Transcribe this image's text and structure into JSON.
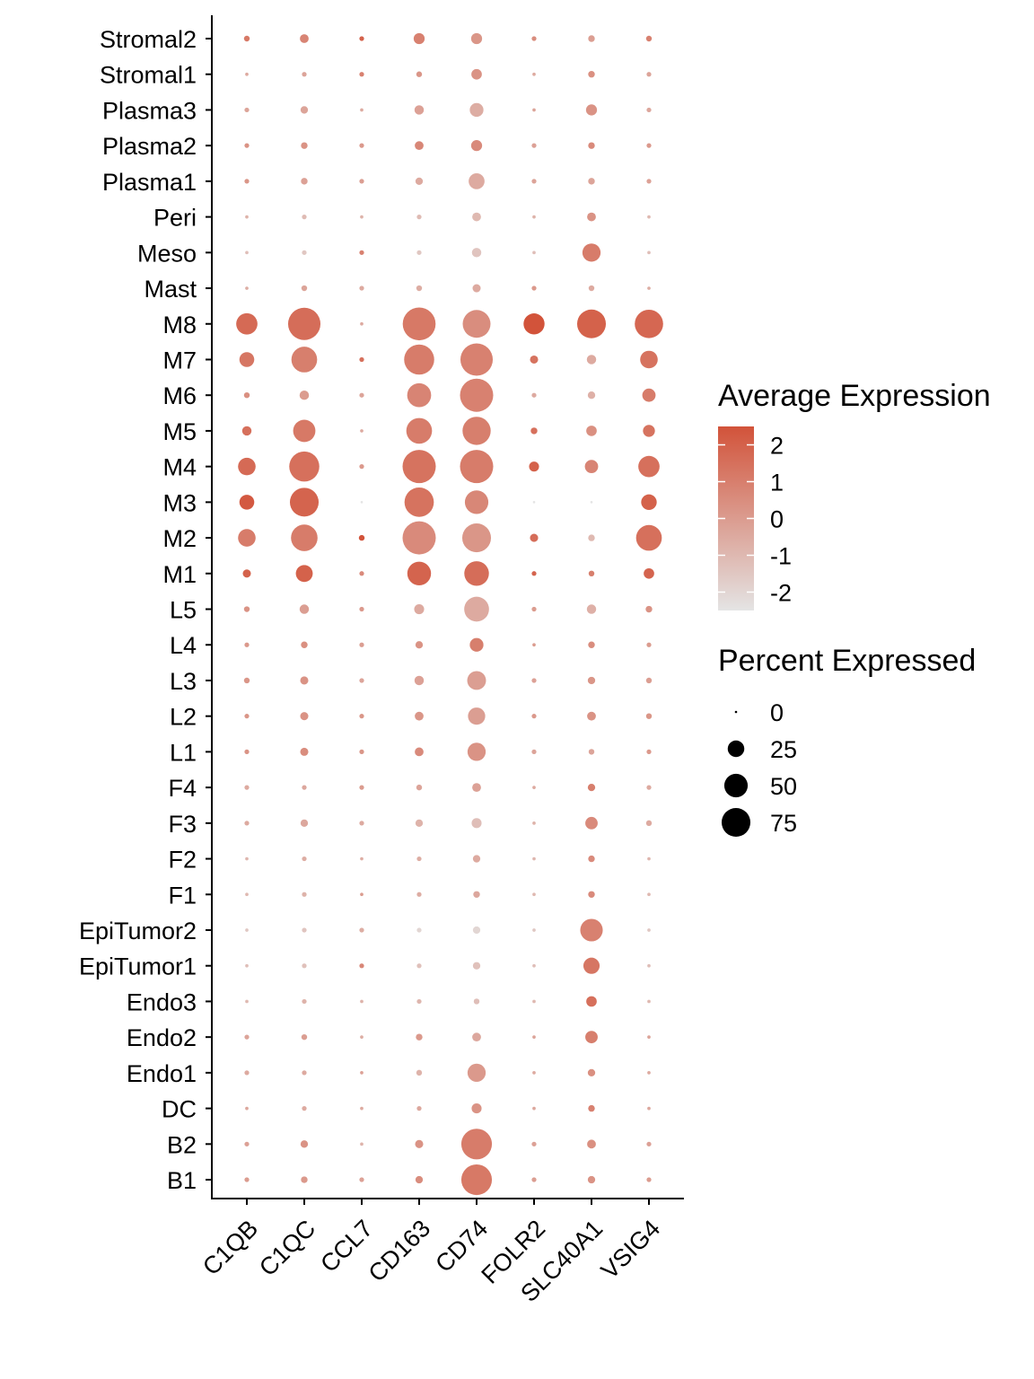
{
  "chart_data": {
    "type": "dotplot",
    "x_categories": [
      "C1QB",
      "C1QC",
      "CCL7",
      "CD163",
      "CD74",
      "FOLR2",
      "SLC40A1",
      "VSIG4"
    ],
    "y_categories": [
      "Stromal2",
      "Stromal1",
      "Plasma3",
      "Plasma2",
      "Plasma1",
      "Peri",
      "Meso",
      "Mast",
      "M8",
      "M7",
      "M6",
      "M5",
      "M4",
      "M3",
      "M2",
      "M1",
      "L5",
      "L4",
      "L3",
      "L2",
      "L1",
      "F4",
      "F3",
      "F2",
      "F1",
      "EpiTumor2",
      "EpiTumor1",
      "Endo3",
      "Endo2",
      "Endo1",
      "DC",
      "B2",
      "B1"
    ],
    "percent_expressed": [
      [
        3,
        7,
        2,
        11,
        11,
        2,
        4,
        3
      ],
      [
        1,
        2,
        2,
        3,
        10,
        1,
        4,
        2
      ],
      [
        2,
        5,
        1,
        8,
        17,
        1,
        11,
        2
      ],
      [
        2,
        4,
        2,
        7,
        11,
        2,
        4,
        2
      ],
      [
        2,
        4,
        2,
        5,
        23,
        2,
        4,
        2
      ],
      [
        1,
        2,
        1,
        2,
        7,
        1,
        7,
        1
      ],
      [
        1,
        2,
        2,
        2,
        8,
        1,
        30,
        1
      ],
      [
        1,
        3,
        2,
        3,
        6,
        2,
        3,
        1
      ],
      [
        41,
        95,
        1,
        98,
        70,
        40,
        75,
        73
      ],
      [
        20,
        60,
        2,
        82,
        95,
        6,
        8,
        28
      ],
      [
        3,
        8,
        2,
        52,
        100,
        2,
        5,
        16
      ],
      [
        8,
        45,
        1,
        60,
        72,
        4,
        10,
        13
      ],
      [
        28,
        82,
        2,
        100,
        100,
        9,
        16,
        41
      ],
      [
        20,
        75,
        0,
        78,
        50,
        0,
        0,
        22
      ],
      [
        28,
        64,
        3,
        100,
        75,
        6,
        4,
        60
      ],
      [
        6,
        26,
        2,
        51,
        55,
        2,
        3,
        10
      ],
      [
        3,
        8,
        2,
        9,
        56,
        2,
        8,
        4
      ],
      [
        2,
        4,
        2,
        5,
        17,
        1,
        4,
        2
      ],
      [
        3,
        6,
        2,
        8,
        32,
        2,
        5,
        3
      ],
      [
        2,
        6,
        2,
        7,
        27,
        2,
        7,
        3
      ],
      [
        2,
        6,
        2,
        7,
        30,
        2,
        3,
        2
      ],
      [
        2,
        2,
        2,
        3,
        7,
        1,
        5,
        2
      ],
      [
        2,
        5,
        2,
        5,
        9,
        1,
        14,
        3
      ],
      [
        1,
        2,
        1,
        2,
        5,
        1,
        4,
        1
      ],
      [
        1,
        2,
        1,
        2,
        4,
        1,
        4,
        1
      ],
      [
        1,
        2,
        2,
        2,
        5,
        1,
        46,
        1
      ],
      [
        1,
        2,
        2,
        2,
        5,
        1,
        24,
        1
      ],
      [
        1,
        2,
        1,
        2,
        3,
        1,
        10,
        1
      ],
      [
        2,
        3,
        1,
        4,
        7,
        1,
        14,
        1
      ],
      [
        2,
        2,
        1,
        3,
        30,
        1,
        5,
        1
      ],
      [
        1,
        2,
        1,
        2,
        9,
        1,
        4,
        1
      ],
      [
        2,
        5,
        1,
        6,
        85,
        2,
        7,
        2
      ],
      [
        2,
        4,
        2,
        5,
        85,
        2,
        5,
        2
      ]
    ],
    "average_expression": [
      [
        1.2,
        0.8,
        2.0,
        0.9,
        0.2,
        0.5,
        -0.1,
        0.9
      ],
      [
        -0.5,
        -0.3,
        0.9,
        0.2,
        0.3,
        -0.5,
        0.4,
        -0.3
      ],
      [
        -0.3,
        -0.3,
        -0.5,
        -0.2,
        -0.6,
        -0.3,
        0.3,
        -0.4
      ],
      [
        0.3,
        0.3,
        0.1,
        0.7,
        0.6,
        -0.2,
        0.6,
        0.1
      ],
      [
        0.2,
        -0.2,
        -0.1,
        -0.5,
        -0.5,
        -0.3,
        -0.3,
        -0.2
      ],
      [
        -0.8,
        -1.1,
        -0.8,
        -1.1,
        -1.0,
        -0.8,
        0.3,
        -1.0
      ],
      [
        -1.2,
        -1.5,
        0.9,
        -1.5,
        -1.4,
        -1.2,
        1.1,
        -1.2
      ],
      [
        -0.6,
        -0.3,
        -0.5,
        -0.6,
        -0.5,
        0.1,
        -0.5,
        -0.6
      ],
      [
        1.7,
        1.6,
        -0.5,
        1.2,
        0.5,
        2.5,
        2.0,
        1.8
      ],
      [
        1.3,
        1.0,
        1.5,
        1.1,
        0.9,
        1.4,
        -0.5,
        1.4
      ],
      [
        0.4,
        0.0,
        -0.3,
        0.8,
        0.9,
        -0.5,
        -0.7,
        1.1
      ],
      [
        1.5,
        1.2,
        -0.5,
        1.1,
        1.0,
        1.5,
        0.4,
        1.4
      ],
      [
        1.7,
        1.5,
        0.1,
        1.4,
        1.1,
        2.0,
        0.8,
        1.5
      ],
      [
        2.3,
        1.9,
        -2.5,
        1.4,
        0.7,
        -2.5,
        -2.5,
        2.0
      ],
      [
        1.1,
        1.1,
        2.5,
        0.6,
        0.2,
        1.6,
        -1.0,
        1.5
      ],
      [
        2.0,
        2.0,
        0.6,
        1.9,
        1.6,
        1.9,
        1.0,
        1.9
      ],
      [
        0.3,
        -0.1,
        0.1,
        -0.5,
        -0.5,
        0.0,
        -0.7,
        0.3
      ],
      [
        0.1,
        0.4,
        -0.1,
        0.3,
        1.0,
        0.0,
        0.5,
        0.0
      ],
      [
        0.2,
        0.3,
        -0.3,
        -0.2,
        -0.1,
        -0.2,
        0.2,
        -0.1
      ],
      [
        0.2,
        0.3,
        0.2,
        0.2,
        -0.1,
        0.1,
        0.3,
        0.2
      ],
      [
        0.3,
        0.5,
        0.2,
        0.6,
        0.3,
        -0.3,
        -0.3,
        0.1
      ],
      [
        -0.5,
        -0.4,
        0.0,
        -0.3,
        -0.2,
        -0.5,
        1.0,
        -0.5
      ],
      [
        -0.5,
        -0.4,
        -0.5,
        -0.8,
        -1.2,
        -0.8,
        0.6,
        -0.5
      ],
      [
        -0.9,
        -0.6,
        -0.6,
        -0.6,
        -0.5,
        -0.9,
        0.6,
        -0.9
      ],
      [
        -1.0,
        -0.8,
        0.0,
        -0.6,
        -0.4,
        -1.0,
        0.6,
        -1.0
      ],
      [
        -1.5,
        -1.4,
        -0.6,
        -2.0,
        -2.0,
        -1.5,
        0.9,
        -1.5
      ],
      [
        -1.2,
        -1.3,
        0.7,
        -1.3,
        -1.3,
        -1.2,
        1.3,
        -1.2
      ],
      [
        -1.0,
        -0.8,
        -0.8,
        -0.9,
        -1.2,
        -1.0,
        1.5,
        -1.0
      ],
      [
        -0.3,
        -0.1,
        -0.6,
        0.1,
        -0.4,
        -0.3,
        1.0,
        -0.3
      ],
      [
        -0.5,
        -0.5,
        -0.2,
        -0.8,
        0.1,
        -0.5,
        0.4,
        -0.5
      ],
      [
        -0.4,
        -0.5,
        -0.5,
        -0.4,
        0.3,
        -0.4,
        0.9,
        -0.4
      ],
      [
        -0.2,
        0.3,
        -0.8,
        0.3,
        1.1,
        -0.2,
        0.4,
        -0.2
      ],
      [
        0.0,
        0.1,
        -0.2,
        0.5,
        1.2,
        -0.1,
        0.3,
        0.0
      ]
    ],
    "color_scale": {
      "low": "#e4e4e4",
      "high": "#d2533a",
      "domain": [
        -2.5,
        2.5
      ]
    },
    "legend": {
      "color_title": "Average Expression",
      "color_ticks": [
        "2",
        "1",
        "0",
        "-1",
        "-2"
      ],
      "size_title": "Percent Expressed",
      "size_ticks": [
        "0",
        "25",
        "50",
        "75"
      ]
    },
    "legend_position": "right",
    "grid": false
  }
}
